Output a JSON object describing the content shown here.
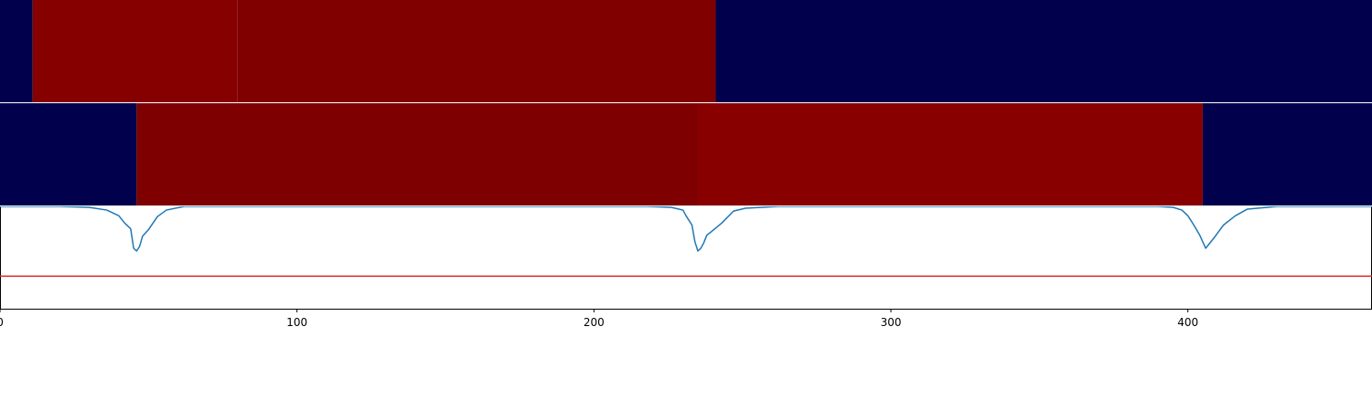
{
  "chart_data": [
    {
      "type": "heatmap",
      "title": "",
      "x_range": [
        0,
        462
      ],
      "segments": [
        {
          "start": 0,
          "end": 11,
          "color": "#00004c"
        },
        {
          "start": 11,
          "end": 80,
          "color": "#860000"
        },
        {
          "start": 80,
          "end": 241,
          "color": "#800000"
        },
        {
          "start": 241,
          "end": 462,
          "color": "#00004c"
        }
      ]
    },
    {
      "type": "heatmap",
      "title": "",
      "x_range": [
        0,
        462
      ],
      "segments": [
        {
          "start": 0,
          "end": 46,
          "color": "#00004c"
        },
        {
          "start": 46,
          "end": 235,
          "color": "#7e0000"
        },
        {
          "start": 235,
          "end": 405,
          "color": "#880000"
        },
        {
          "start": 405,
          "end": 462,
          "color": "#00004c"
        }
      ]
    },
    {
      "type": "line",
      "title": "",
      "xlabel": "",
      "ylabel": "",
      "xlim": [
        0,
        462
      ],
      "ylim": [
        -0.1,
        1.0
      ],
      "grid": false,
      "line_color": "#1f77b4",
      "threshold": {
        "value": 0.25,
        "color": "#d62728"
      },
      "series": [
        {
          "x": [
            0,
            20,
            30,
            36,
            40,
            42,
            44,
            45,
            46,
            47,
            48,
            50,
            53,
            56,
            62,
            80,
            200,
            218,
            226,
            230,
            231,
            233,
            234,
            235,
            236,
            237,
            238,
            240,
            243,
            247,
            251,
            262,
            300,
            360,
            380,
            390,
            395,
            398,
            400,
            402,
            404,
            405,
            406,
            407,
            409,
            412,
            416,
            420,
            430,
            462
          ],
          "y": [
            1.0,
            1.0,
            0.99,
            0.96,
            0.9,
            0.82,
            0.76,
            0.55,
            0.52,
            0.57,
            0.68,
            0.75,
            0.89,
            0.96,
            1.0,
            1.0,
            1.0,
            1.0,
            0.99,
            0.96,
            0.9,
            0.8,
            0.62,
            0.52,
            0.55,
            0.61,
            0.69,
            0.74,
            0.82,
            0.95,
            0.98,
            1.0,
            1.0,
            1.0,
            1.0,
            1.0,
            0.99,
            0.96,
            0.9,
            0.8,
            0.69,
            0.62,
            0.55,
            0.59,
            0.67,
            0.8,
            0.9,
            0.97,
            1.0,
            1.0
          ]
        }
      ],
      "x_ticks": [
        0,
        100,
        200,
        300,
        400
      ],
      "x_tick_labels": [
        "0",
        "100",
        "200",
        "300",
        "400"
      ]
    }
  ]
}
